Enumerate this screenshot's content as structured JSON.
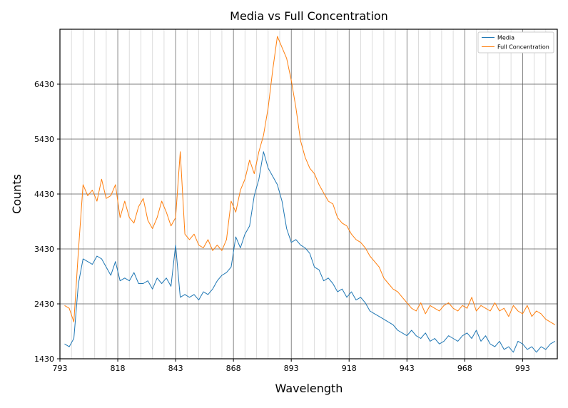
{
  "chart_data": {
    "type": "line",
    "title": "Media vs Full Concentration",
    "xlabel": "Wavelength",
    "ylabel": "Counts",
    "xlim": [
      793,
      1008
    ],
    "ylim": [
      1430,
      7430
    ],
    "x_ticks": [
      793,
      818,
      843,
      868,
      893,
      918,
      943,
      968,
      993
    ],
    "y_ticks": [
      1430,
      2430,
      3430,
      4430,
      5430,
      6430
    ],
    "grid": true,
    "legend_position": "top-right",
    "series": [
      {
        "name": "Media",
        "color": "#1f77b4",
        "x": [
          795,
          797,
          799,
          801,
          803,
          805,
          807,
          809,
          811,
          813,
          815,
          817,
          819,
          821,
          823,
          825,
          827,
          829,
          831,
          833,
          835,
          837,
          839,
          841,
          843,
          845,
          847,
          849,
          851,
          853,
          855,
          857,
          859,
          861,
          863,
          865,
          867,
          869,
          871,
          873,
          875,
          877,
          879,
          881,
          883,
          885,
          887,
          889,
          891,
          893,
          895,
          897,
          899,
          901,
          903,
          905,
          907,
          909,
          911,
          913,
          915,
          917,
          919,
          921,
          923,
          925,
          927,
          929,
          931,
          933,
          935,
          937,
          939,
          941,
          943,
          945,
          947,
          949,
          951,
          953,
          955,
          957,
          959,
          961,
          963,
          965,
          967,
          969,
          971,
          973,
          975,
          977,
          979,
          981,
          983,
          985,
          987,
          989,
          991,
          993,
          995,
          997,
          999,
          1001,
          1003,
          1005,
          1007
        ],
        "values": [
          1700,
          1650,
          1800,
          2800,
          3250,
          3200,
          3150,
          3300,
          3250,
          3100,
          2950,
          3200,
          2850,
          2900,
          2850,
          3000,
          2800,
          2800,
          2850,
          2700,
          2900,
          2800,
          2900,
          2750,
          3500,
          2550,
          2600,
          2550,
          2600,
          2500,
          2650,
          2600,
          2700,
          2850,
          2950,
          3000,
          3100,
          3650,
          3450,
          3700,
          3850,
          4400,
          4700,
          5200,
          4900,
          4750,
          4600,
          4300,
          3800,
          3550,
          3600,
          3500,
          3450,
          3350,
          3100,
          3050,
          2850,
          2900,
          2800,
          2650,
          2700,
          2550,
          2650,
          2500,
          2550,
          2450,
          2300,
          2250,
          2200,
          2150,
          2100,
          2050,
          1950,
          1900,
          1850,
          1950,
          1850,
          1800,
          1900,
          1750,
          1800,
          1700,
          1750,
          1850,
          1800,
          1750,
          1850,
          1900,
          1800,
          1950,
          1750,
          1850,
          1700,
          1650,
          1750,
          1600,
          1650,
          1550,
          1750,
          1700,
          1600,
          1650,
          1550,
          1650,
          1600,
          1700,
          1750
        ]
      },
      {
        "name": "Full Concentration",
        "color": "#ff7f0e",
        "x": [
          795,
          797,
          799,
          801,
          803,
          805,
          807,
          809,
          811,
          813,
          815,
          817,
          819,
          821,
          823,
          825,
          827,
          829,
          831,
          833,
          835,
          837,
          839,
          841,
          843,
          845,
          847,
          849,
          851,
          853,
          855,
          857,
          859,
          861,
          863,
          865,
          867,
          869,
          871,
          873,
          875,
          877,
          879,
          881,
          883,
          885,
          887,
          889,
          891,
          893,
          895,
          897,
          899,
          901,
          903,
          905,
          907,
          909,
          911,
          913,
          915,
          917,
          919,
          921,
          923,
          925,
          927,
          929,
          931,
          933,
          935,
          937,
          939,
          941,
          943,
          945,
          947,
          949,
          951,
          953,
          955,
          957,
          959,
          961,
          963,
          965,
          967,
          969,
          971,
          973,
          975,
          977,
          979,
          981,
          983,
          985,
          987,
          989,
          991,
          993,
          995,
          997,
          999,
          1001,
          1003,
          1005,
          1007
        ],
        "values": [
          2400,
          2350,
          2100,
          3400,
          4600,
          4400,
          4500,
          4300,
          4700,
          4350,
          4400,
          4600,
          4000,
          4300,
          4000,
          3900,
          4200,
          4350,
          3950,
          3800,
          4000,
          4300,
          4100,
          3850,
          4000,
          5200,
          3700,
          3600,
          3700,
          3500,
          3450,
          3600,
          3400,
          3500,
          3400,
          3600,
          4300,
          4100,
          4500,
          4700,
          5050,
          4800,
          5200,
          5500,
          6000,
          6700,
          7300,
          7100,
          6900,
          6500,
          6000,
          5400,
          5100,
          4900,
          4800,
          4600,
          4450,
          4300,
          4250,
          4000,
          3900,
          3850,
          3700,
          3600,
          3550,
          3450,
          3300,
          3200,
          3100,
          2900,
          2800,
          2700,
          2650,
          2550,
          2450,
          2350,
          2300,
          2450,
          2250,
          2400,
          2350,
          2300,
          2400,
          2450,
          2350,
          2300,
          2400,
          2350,
          2550,
          2300,
          2400,
          2350,
          2300,
          2450,
          2300,
          2350,
          2200,
          2400,
          2300,
          2250,
          2400,
          2200,
          2300,
          2250,
          2150,
          2100,
          2050
        ]
      }
    ]
  }
}
